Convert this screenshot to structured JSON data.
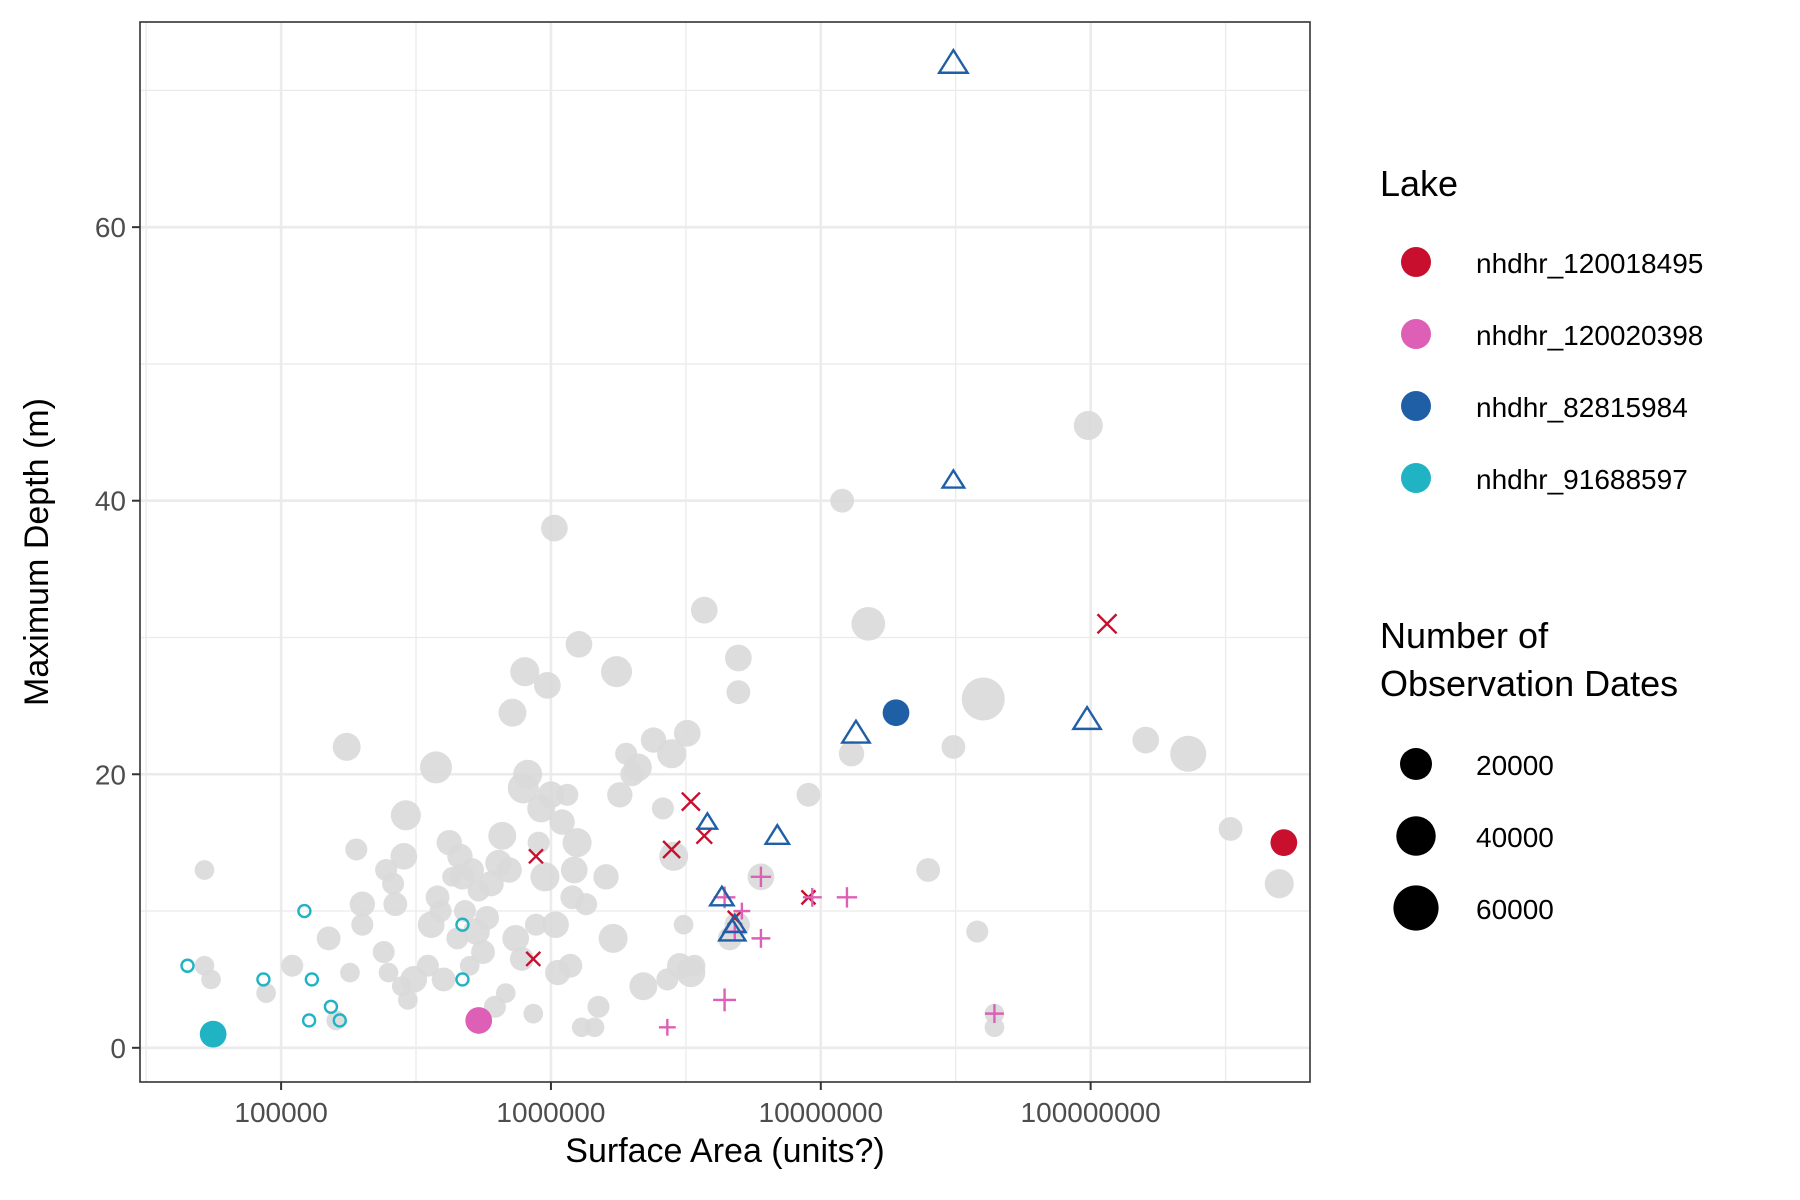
{
  "chart_data": {
    "type": "scatter",
    "xlabel": "Surface Area (units?)",
    "ylabel": "Maximum Depth (m)",
    "x_scale": "log10",
    "xlim": [
      30000,
      650000000
    ],
    "ylim": [
      -2.5,
      75
    ],
    "x_ticks": [
      100000,
      1000000,
      10000000,
      100000000
    ],
    "x_tick_labels": [
      "100000",
      "1000000",
      "10000000",
      "100000000"
    ],
    "y_ticks": [
      0,
      20,
      40,
      60
    ],
    "y_tick_labels": [
      "0",
      "20",
      "40",
      "60"
    ],
    "grid": true,
    "legend_placement": "right",
    "legend_lake": {
      "title": "Lake",
      "items": [
        {
          "label": "nhdhr_120018495",
          "color": "#C8102E"
        },
        {
          "label": "nhdhr_120020398",
          "color": "#DD5FB6"
        },
        {
          "label": "nhdhr_82815984",
          "color": "#1F5FA6"
        },
        {
          "label": "nhdhr_91688597",
          "color": "#1FB3C4"
        }
      ]
    },
    "legend_size": {
      "title": [
        "Number of",
        "Observation Dates"
      ],
      "items": [
        {
          "label": "20000",
          "value": 20000
        },
        {
          "label": "40000",
          "value": 40000
        },
        {
          "label": "60000",
          "value": 60000
        }
      ]
    },
    "background_points": [
      [
        52000,
        13,
        2000
      ],
      [
        52000,
        6,
        2000
      ],
      [
        55000,
        5,
        2000
      ],
      [
        88000,
        4,
        2000
      ],
      [
        110000,
        6,
        4000
      ],
      [
        150000,
        8,
        6000
      ],
      [
        160000,
        2,
        2000
      ],
      [
        175000,
        22,
        12000
      ],
      [
        180000,
        5.5,
        2000
      ],
      [
        190000,
        14.5,
        4000
      ],
      [
        200000,
        10.5,
        8000
      ],
      [
        200000,
        9,
        4000
      ],
      [
        240000,
        7,
        4000
      ],
      [
        245000,
        13,
        4000
      ],
      [
        250000,
        5.5,
        2000
      ],
      [
        260000,
        12,
        4000
      ],
      [
        265000,
        10.5,
        6000
      ],
      [
        280000,
        4.5,
        2000
      ],
      [
        285000,
        14,
        10000
      ],
      [
        290000,
        17,
        16000
      ],
      [
        295000,
        3.5,
        2000
      ],
      [
        310000,
        5,
        10000
      ],
      [
        350000,
        6,
        4000
      ],
      [
        360000,
        9,
        10000
      ],
      [
        375000,
        20.5,
        20000
      ],
      [
        380000,
        11,
        6000
      ],
      [
        390000,
        10,
        4000
      ],
      [
        400000,
        5,
        6000
      ],
      [
        420000,
        15,
        8000
      ],
      [
        430000,
        12.5,
        2000
      ],
      [
        450000,
        8,
        4000
      ],
      [
        460000,
        14,
        8000
      ],
      [
        470000,
        12.5,
        8000
      ],
      [
        480000,
        10,
        4000
      ],
      [
        500000,
        6,
        2000
      ],
      [
        510000,
        13,
        6000
      ],
      [
        530000,
        8.5,
        10000
      ],
      [
        540000,
        11.5,
        4000
      ],
      [
        560000,
        7,
        6000
      ],
      [
        580000,
        9.5,
        6000
      ],
      [
        600000,
        12,
        8000
      ],
      [
        620000,
        3,
        4000
      ],
      [
        640000,
        13.5,
        10000
      ],
      [
        660000,
        15.5,
        12000
      ],
      [
        680000,
        4,
        2000
      ],
      [
        700000,
        13,
        8000
      ],
      [
        720000,
        24.5,
        12000
      ],
      [
        740000,
        8,
        10000
      ],
      [
        780000,
        6.5,
        6000
      ],
      [
        790000,
        19,
        18000
      ],
      [
        800000,
        27.5,
        14000
      ],
      [
        820000,
        20,
        14000
      ],
      [
        860000,
        2.5,
        2000
      ],
      [
        880000,
        9,
        4000
      ],
      [
        900000,
        15,
        4000
      ],
      [
        920000,
        17.5,
        12000
      ],
      [
        950000,
        12.5,
        14000
      ],
      [
        970000,
        26.5,
        10000
      ],
      [
        1000000,
        18.5,
        10000
      ],
      [
        1030000,
        38,
        10000
      ],
      [
        1040000,
        9,
        10000
      ],
      [
        1060000,
        5.5,
        8000
      ],
      [
        1100000,
        16.5,
        8000
      ],
      [
        1150000,
        18.5,
        4000
      ],
      [
        1180000,
        6,
        6000
      ],
      [
        1200000,
        11,
        6000
      ],
      [
        1220000,
        13,
        10000
      ],
      [
        1250000,
        15,
        14000
      ],
      [
        1270000,
        29.5,
        10000
      ],
      [
        1300000,
        1.5,
        2000
      ],
      [
        1350000,
        10.5,
        4000
      ],
      [
        1450000,
        1.5,
        2000
      ],
      [
        1500000,
        3,
        4000
      ],
      [
        1600000,
        12.5,
        8000
      ],
      [
        1700000,
        8,
        14000
      ],
      [
        1750000,
        27.5,
        18000
      ],
      [
        1800000,
        18.5,
        8000
      ],
      [
        1900000,
        21.5,
        4000
      ],
      [
        2000000,
        20,
        6000
      ],
      [
        2100000,
        20.5,
        12000
      ],
      [
        2200000,
        4.5,
        12000
      ],
      [
        2400000,
        22.5,
        8000
      ],
      [
        2600000,
        17.5,
        4000
      ],
      [
        2700000,
        5,
        4000
      ],
      [
        2800000,
        21.5,
        14000
      ],
      [
        2850000,
        14,
        14000
      ],
      [
        3000000,
        6,
        8000
      ],
      [
        3100000,
        9,
        2000
      ],
      [
        3200000,
        23,
        10000
      ],
      [
        3300000,
        5.5,
        14000
      ],
      [
        3400000,
        6,
        4000
      ],
      [
        3700000,
        32,
        10000
      ],
      [
        4600000,
        8,
        6000
      ],
      [
        4900000,
        9,
        8000
      ],
      [
        4950000,
        28.5,
        10000
      ],
      [
        4950000,
        26,
        6000
      ],
      [
        6000000,
        12.5,
        10000
      ],
      [
        9000000,
        18.5,
        6000
      ],
      [
        12000000,
        40,
        6000
      ],
      [
        13000000,
        21.5,
        8000
      ],
      [
        15000000,
        31,
        24000
      ],
      [
        25000000,
        13,
        6000
      ],
      [
        31000000,
        22,
        6000
      ],
      [
        38000000,
        8.5,
        4000
      ],
      [
        40000000,
        25.5,
        52000
      ],
      [
        44000000,
        2.5,
        2000
      ],
      [
        44000000,
        1.5,
        2000
      ],
      [
        98000000,
        45.5,
        14000
      ],
      [
        160000000,
        22.5,
        10000
      ],
      [
        230000000,
        21.5,
        30000
      ],
      [
        330000000,
        16,
        6000
      ],
      [
        500000000,
        12,
        14000
      ]
    ],
    "series": [
      {
        "name": "nhdhr_120018495",
        "color": "#C8102E",
        "highlight": [
          520000000,
          15,
          10000
        ],
        "points": [
          [
            880000,
            14,
            2000
          ],
          [
            860000,
            6.5,
            2000
          ],
          [
            2800000,
            14.5,
            6000
          ],
          [
            3300000,
            18,
            8000
          ],
          [
            3700000,
            15.5,
            4000
          ],
          [
            4800000,
            9.5,
            2000
          ],
          [
            9000000,
            11,
            2000
          ],
          [
            115000000,
            31,
            10000
          ]
        ]
      },
      {
        "name": "nhdhr_120020398",
        "color": "#DD5FB6",
        "highlight": [
          540000,
          2,
          10000
        ],
        "points": [
          [
            2700000,
            1.5,
            2000
          ],
          [
            4400000,
            11,
            8000
          ],
          [
            4400000,
            3.5,
            10000
          ],
          [
            4800000,
            8.5,
            4000
          ],
          [
            5100000,
            10,
            2000
          ],
          [
            6000000,
            12.5,
            6000
          ],
          [
            6000000,
            8,
            4000
          ],
          [
            9300000,
            11,
            4000
          ],
          [
            12500000,
            11,
            6000
          ],
          [
            44000000,
            2.5,
            4000
          ]
        ]
      },
      {
        "name": "nhdhr_82815984",
        "color": "#1F5FA6",
        "highlight": [
          19000000,
          24.5,
          10000
        ],
        "points": [
          [
            3800000,
            16.5,
            2000
          ],
          [
            4300000,
            11,
            6000
          ],
          [
            4800000,
            9,
            4000
          ],
          [
            4700000,
            8.5,
            10000
          ],
          [
            6900000,
            15.5,
            6000
          ],
          [
            13500000,
            23,
            12000
          ],
          [
            31000000,
            72,
            14000
          ],
          [
            31000000,
            41.5,
            4000
          ],
          [
            97000000,
            24,
            12000
          ]
        ]
      },
      {
        "name": "nhdhr_91688597",
        "color": "#1FB3C4",
        "highlight": [
          56000,
          1,
          10000
        ],
        "points": [
          [
            45000,
            6,
            6000
          ],
          [
            86000,
            5,
            4000
          ],
          [
            122000,
            10,
            2000
          ],
          [
            127000,
            2,
            1000
          ],
          [
            130000,
            5,
            1000
          ],
          [
            153000,
            3,
            1000
          ],
          [
            165000,
            2,
            1000
          ],
          [
            470000,
            9,
            2000
          ],
          [
            470000,
            5,
            2000
          ]
        ]
      }
    ]
  }
}
